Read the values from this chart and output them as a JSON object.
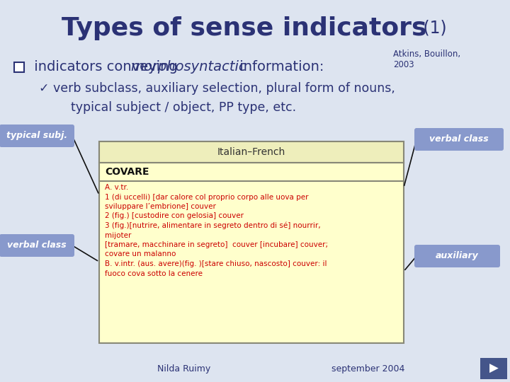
{
  "bg_color": "#dde4f0",
  "title_main": "Types of sense indicators",
  "title_num": " (1)",
  "text_color": "#2b3275",
  "subtitle_ref": "Atkins, Bouillon,\n2003",
  "bullet_plain1": " indicators conveying ",
  "bullet_italic": "morphosyntactic",
  "bullet_plain2": " information:",
  "check_line1": "✓ verb subclass, auxiliary selection, plural form of nouns,",
  "check_line2": "typical subject / object, PP type, etc.",
  "table_header": "Italian–French",
  "table_word": "COVARE",
  "table_bg": "#ffffcc",
  "table_border": "#aaaaaa",
  "label_bg": "#8899cc",
  "label_fg": "#ffffff",
  "arrow_color": "#111111",
  "footer_left": "Nilda Ruimy",
  "footer_right": "september 2004",
  "nav_color": "#44558a",
  "dict_line1": "A. v.tr.",
  "dict_line2": "1 (di uccelli) [dar calore col proprio corpo alle uova per",
  "dict_line3": "sviluppare l’embrione] couver",
  "dict_line4": "2 (fig.) [custodire con gelosia] couver",
  "dict_line5": "3 (fig.)[nutrire, alimentare in segreto dentro di sé] nourrir,",
  "dict_line6": "mijoter",
  "dict_line7": "[tramare, macchinare in segreto]  couver [incubare] couver;",
  "dict_line8": "covare un malanno",
  "dict_line9": "B. v.intr. (aus. avere)(fig. )[stare chiuso, nascosto] couver: il",
  "dict_line10": "fuoco cova sotto la cenere"
}
